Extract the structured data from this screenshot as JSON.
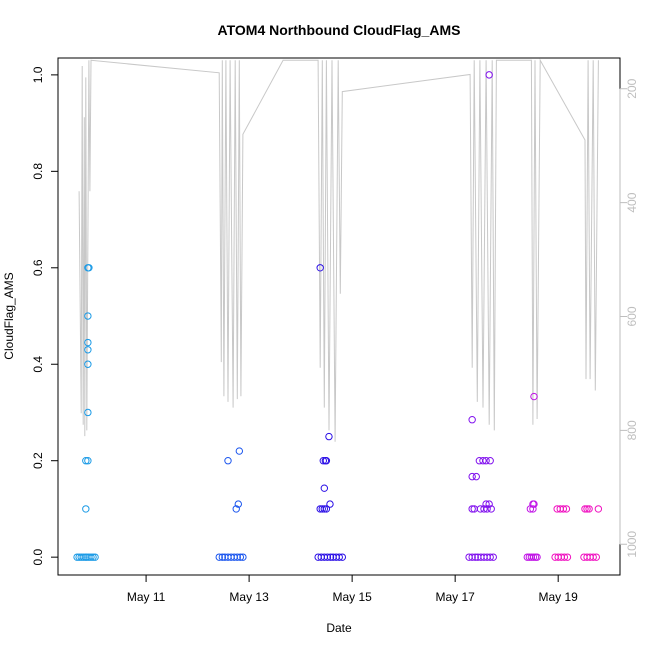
{
  "chart_data": {
    "type": "scatter",
    "title": "ATOM4 Northbound CloudFlag_AMS",
    "x_label": "Date",
    "y_label": "CloudFlag_AMS",
    "xlim": [
      9.29,
      20.2
    ],
    "xticks": [
      {
        "value": 11,
        "label": "May 11"
      },
      {
        "value": 13,
        "label": "May 13"
      },
      {
        "value": 15,
        "label": "May 15"
      },
      {
        "value": 17,
        "label": "May 17"
      },
      {
        "value": 19,
        "label": "May 19"
      }
    ],
    "ylim": [
      -0.037,
      1.035
    ],
    "yticks": [
      {
        "value": 0,
        "label": "0.0"
      },
      0.2,
      0.4,
      0.6,
      0.8,
      {
        "value": 1,
        "label": "1.0"
      }
    ],
    "y2lim": [
      1054,
      146
    ],
    "y2ticks": [
      200,
      400,
      600,
      800,
      1000
    ],
    "y2_color": "#bebebe",
    "series": [
      {
        "color": "#1a9ae6",
        "x": [
          9.66,
          9.7,
          9.74,
          9.78,
          9.82,
          9.85,
          9.89,
          9.93,
          9.97,
          10.01,
          9.83,
          9.83,
          9.87,
          9.87,
          9.87,
          9.87,
          9.87,
          9.87,
          9.87,
          9.89
        ],
        "values": [
          0,
          0,
          0,
          0,
          0,
          0,
          0,
          0,
          0,
          0,
          0.1,
          0.2,
          0.2,
          0.3,
          0.4,
          0.43,
          0.445,
          0.5,
          0.6,
          0.6
        ]
      },
      {
        "color": "#1a55ee",
        "x": [
          12.42,
          12.48,
          12.53,
          12.59,
          12.65,
          12.71,
          12.77,
          12.83,
          12.88,
          12.59,
          12.75,
          12.79,
          12.81
        ],
        "values": [
          0,
          0,
          0,
          0,
          0,
          0,
          0,
          0,
          0,
          0.2,
          0.1,
          0.11,
          0.22
        ]
      },
      {
        "color": "#2b0fe6",
        "x": [
          14.34,
          14.4,
          14.46,
          14.52,
          14.58,
          14.63,
          14.69,
          14.75,
          14.81,
          14.38,
          14.38,
          14.42,
          14.46,
          14.5,
          14.44,
          14.48,
          14.5,
          14.46,
          14.55,
          14.57
        ],
        "values": [
          0,
          0,
          0,
          0,
          0,
          0,
          0,
          0,
          0,
          0.6,
          0.1,
          0.1,
          0.1,
          0.1,
          0.2,
          0.2,
          0.2,
          0.143,
          0.25,
          0.11
        ]
      },
      {
        "color": "#8010ee",
        "x": [
          17.27,
          17.33,
          17.39,
          17.44,
          17.5,
          17.56,
          17.62,
          17.68,
          17.74,
          17.33,
          17.33,
          17.37,
          17.49,
          17.56,
          17.62,
          17.7,
          17.33,
          17.41,
          17.47,
          17.54,
          17.6,
          17.68,
          17.6,
          17.66,
          17.66
        ],
        "values": [
          0,
          0,
          0,
          0,
          0,
          0,
          0,
          0,
          0,
          0.285,
          0.1,
          0.1,
          0.1,
          0.1,
          0.1,
          0.1,
          0.167,
          0.167,
          0.2,
          0.2,
          0.2,
          0.2,
          0.11,
          0.11,
          1.0
        ]
      },
      {
        "color": "#c012e6",
        "x": [
          18.4,
          18.44,
          18.48,
          18.52,
          18.56,
          18.59,
          18.46,
          18.51,
          18.51,
          18.53,
          18.53
        ],
        "values": [
          0,
          0,
          0,
          0,
          0,
          0,
          0.1,
          0.1,
          0.11,
          0.11,
          0.333
        ]
      },
      {
        "color": "#f010c0",
        "x": [
          18.94,
          19.0,
          19.06,
          19.12,
          19.18,
          19.5,
          19.56,
          19.62,
          19.68,
          19.74,
          18.98,
          19.04,
          19.1,
          19.16,
          19.52,
          19.56,
          19.6,
          19.78
        ],
        "values": [
          0,
          0,
          0,
          0,
          0,
          0,
          0,
          0,
          0,
          0,
          0.1,
          0.1,
          0.1,
          0.1,
          0.1,
          0.1,
          0.1,
          0.1
        ]
      },
      {
        "type": "line",
        "axis": "y2",
        "color": "#c8c8c8",
        "x": [
          9.7,
          9.74,
          9.76,
          9.78,
          9.8,
          9.81,
          9.83,
          9.85,
          9.89,
          9.91,
          9.93,
          12.42,
          12.46,
          12.48,
          12.51,
          12.55,
          12.59,
          12.63,
          12.69,
          12.73,
          12.77,
          12.81,
          12.84,
          12.88,
          13.66,
          14.34,
          14.38,
          14.42,
          14.46,
          14.5,
          14.55,
          14.61,
          14.67,
          14.73,
          14.77,
          14.81,
          17.29,
          17.33,
          17.37,
          17.43,
          17.48,
          17.54,
          17.6,
          17.66,
          17.72,
          17.76,
          17.8,
          18.48,
          18.51,
          18.55,
          18.59,
          18.65,
          19.52,
          19.54,
          19.58,
          19.62,
          19.68,
          19.72,
          19.78
        ],
        "values": [
          380,
          770,
          160,
          790,
          250,
          810,
          180,
          800,
          150,
          380,
          150,
          172,
          680,
          150,
          740,
          150,
          750,
          150,
          760,
          150,
          745,
          150,
          740,
          280,
          150,
          150,
          690,
          150,
          760,
          150,
          800,
          150,
          820,
          150,
          560,
          205,
          175,
          690,
          150,
          750,
          150,
          760,
          150,
          790,
          150,
          800,
          150,
          150,
          790,
          150,
          780,
          150,
          290,
          710,
          150,
          710,
          150,
          730,
          150
        ]
      }
    ]
  }
}
